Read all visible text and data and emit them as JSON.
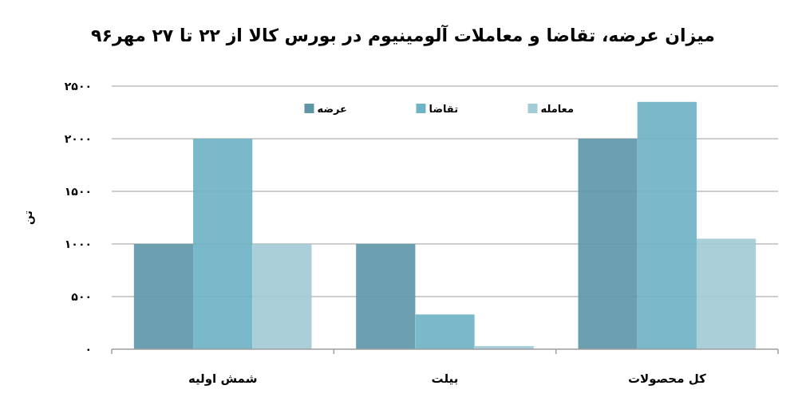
{
  "chart_data": {
    "type": "bar",
    "title": "میزان عرضه، تقاضا و معاملات آلومینیوم در بورس کالا از ۲۲ تا ۲۷ مهر۹۶",
    "ylabel": "تن",
    "categories": [
      "شمش اولیه",
      "بیلت",
      "کل محصولات"
    ],
    "series": [
      {
        "name": "عرضه",
        "color": "#5f97a8",
        "values": [
          1000,
          1000,
          2000
        ]
      },
      {
        "name": "تقاضا",
        "color": "#6fb3c5",
        "values": [
          2000,
          330,
          2350
        ]
      },
      {
        "name": "معامله",
        "color": "#a3cbd6",
        "values": [
          1000,
          30,
          1050
        ]
      }
    ],
    "ylim": [
      0,
      2500
    ],
    "yticks": [
      {
        "value": 0,
        "label": "۰"
      },
      {
        "value": 500,
        "label": "۵۰۰"
      },
      {
        "value": 1000,
        "label": "۱۰۰۰"
      },
      {
        "value": 1500,
        "label": "۱۵۰۰"
      },
      {
        "value": 2000,
        "label": "۲۰۰۰"
      },
      {
        "value": 2500,
        "label": "۲۵۰۰"
      }
    ],
    "grid": "y",
    "legend": "top"
  }
}
